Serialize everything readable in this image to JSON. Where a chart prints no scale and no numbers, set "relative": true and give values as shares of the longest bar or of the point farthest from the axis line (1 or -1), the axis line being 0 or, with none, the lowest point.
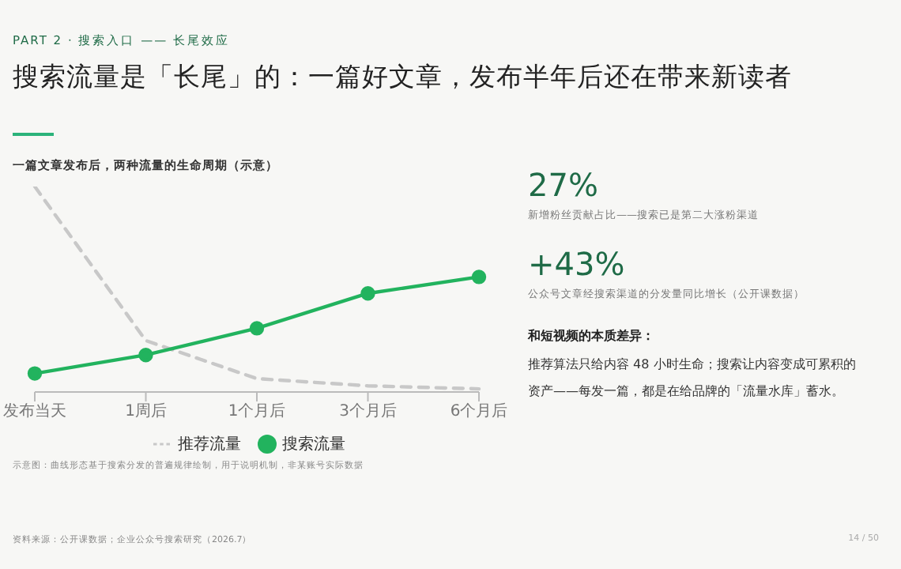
{
  "chart_data": {
    "type": "line",
    "relative": true,
    "title": "搜索流量是「长尾」的：一篇好文章，发布半年后还在带来新读者",
    "subtitle": "一篇文章发布后，两种流量的生命周期（示意）",
    "categories": [
      "发布当天",
      "1周后",
      "1个月后",
      "3个月后",
      "6个月后"
    ],
    "series": [
      {
        "name": "推荐流量",
        "color": "#c8c8c8",
        "values": [
          1,
          0.25,
          0.065,
          0.03,
          0.015
        ],
        "line_style": "dashed",
        "marker": "none"
      },
      {
        "name": "搜索流量",
        "color": "#22b35e",
        "values": [
          0.09,
          0.18,
          0.31,
          0.48,
          0.56
        ],
        "line_style": "solid",
        "marker": "circle"
      }
    ],
    "legend": "bottom",
    "grid": false,
    "annotations": [
      "PART 2 · 搜索入口 —— 长尾效应",
      "27%",
      "新增粉丝贡献占比——搜索已是第二大涨粉渠道",
      "+43%",
      "公众号文章经搜索渠道的分发量同比增长（公开课数据）",
      "和短视频的本质差异：",
      "推荐算法只给内容 48 小时生命；搜索让内容变成可累积的资产——每发一篇，都是在给品牌的「流量水库」蓄水。",
      "示意图：曲线形态基于搜索分发的普遍规律绘制，用于说明机制，非某账号实际数据",
      "资料来源：公开课数据；企业公众号搜索研究（2026.7）",
      "14 / 50"
    ]
  }
}
